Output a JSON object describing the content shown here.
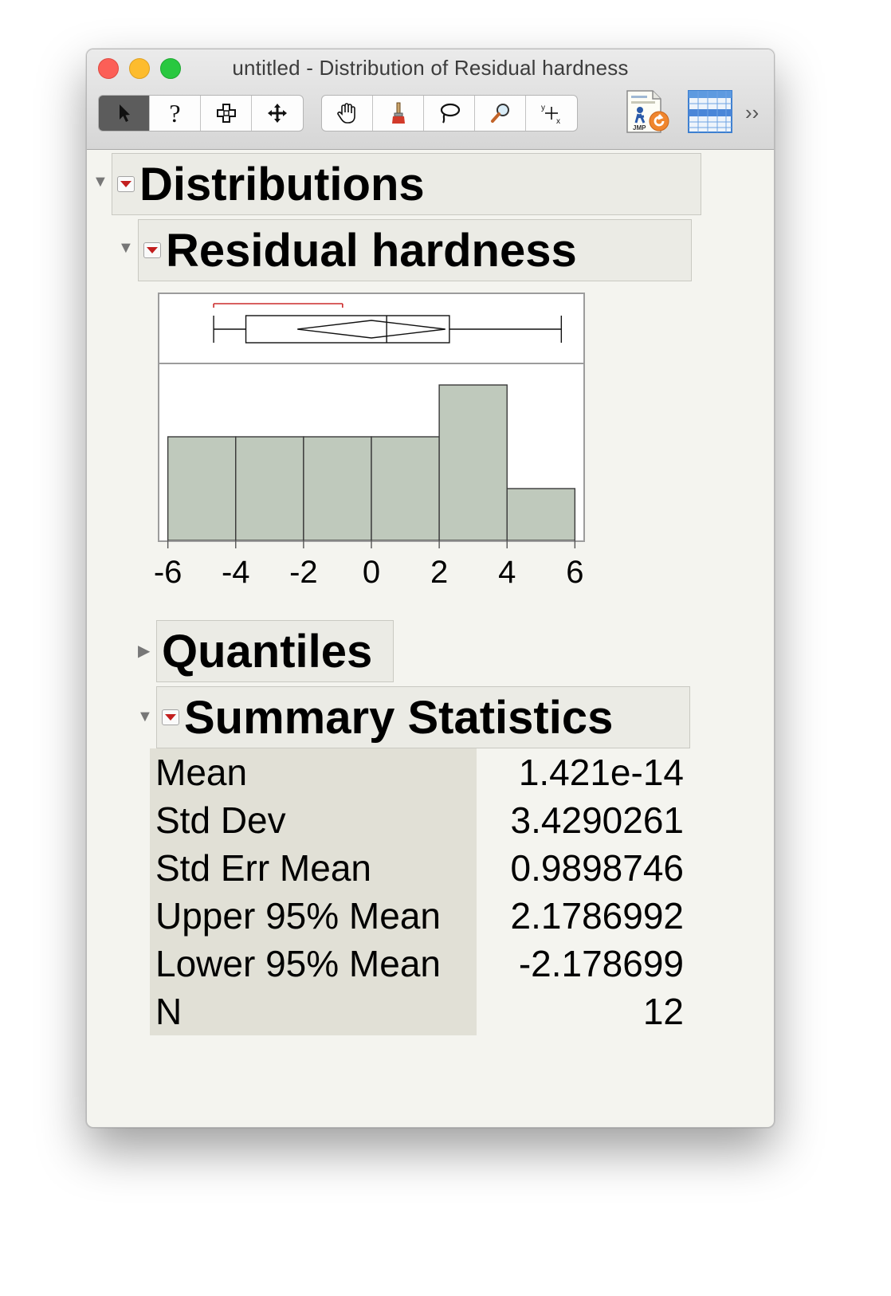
{
  "window": {
    "title": "untitled - Distribution of Residual hardness"
  },
  "toolbar": {
    "tools": [
      {
        "name": "arrow-icon",
        "glyph": "➤"
      },
      {
        "name": "help-icon",
        "glyph": "?"
      },
      {
        "name": "selection-icon",
        "glyph": "✜"
      },
      {
        "name": "move-icon",
        "glyph": "✥"
      },
      {
        "name": "hand-icon",
        "glyph": "✋"
      },
      {
        "name": "brush-icon",
        "glyph": "🖌"
      },
      {
        "name": "lasso-icon",
        "glyph": "◌"
      },
      {
        "name": "magnifier-icon",
        "glyph": "🔍"
      },
      {
        "name": "crosshair-icon",
        "glyph": "+"
      }
    ],
    "overflow": "››"
  },
  "report": {
    "distributions_title": "Distributions",
    "variable_title": "Residual hardness",
    "quantiles_title": "Quantiles",
    "summary_title": "Summary Statistics"
  },
  "chart_data": {
    "type": "bar",
    "bins": [
      {
        "from": -6,
        "to": -4,
        "count": 2
      },
      {
        "from": -4,
        "to": -2,
        "count": 2
      },
      {
        "from": -2,
        "to": 0,
        "count": 2
      },
      {
        "from": 0,
        "to": 2,
        "count": 2
      },
      {
        "from": 2,
        "to": 4,
        "count": 3
      },
      {
        "from": 4,
        "to": 6,
        "count": 1
      }
    ],
    "x_ticks": [
      "-6",
      "-4",
      "-2",
      "0",
      "2",
      "4",
      "6"
    ],
    "xlim": [
      -6.25,
      6.25
    ],
    "boxplot": {
      "min": -4.65,
      "q1": -3.7,
      "median": 0.45,
      "q3": 2.3,
      "max": 5.6,
      "mean": 0.0,
      "ci_lower": -2.18,
      "ci_upper": 2.18,
      "shortest_half": [
        -4.65,
        -0.85
      ]
    },
    "bar_color": "#bfc9bc",
    "shortest_half_color": "#cc2b2b"
  },
  "summary": [
    {
      "label": "Mean",
      "value": "1.421e-14"
    },
    {
      "label": "Std Dev",
      "value": "3.4290261"
    },
    {
      "label": "Std Err Mean",
      "value": "0.9898746"
    },
    {
      "label": "Upper 95% Mean",
      "value": "2.1786992"
    },
    {
      "label": "Lower 95% Mean",
      "value": "-2.178699"
    },
    {
      "label": "N",
      "value": "12"
    }
  ]
}
